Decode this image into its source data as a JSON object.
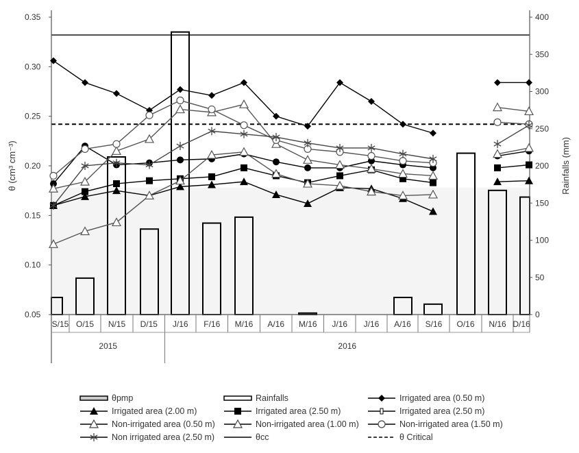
{
  "chart_data": {
    "type": "line",
    "categories": [
      "S/15",
      "O/15",
      "N/15",
      "D/15",
      "J/16",
      "F/16",
      "M/16",
      "A/16",
      "M/16",
      "J/16",
      "J/16",
      "A/16",
      "S/16",
      "O/16",
      "N/16",
      "D/16"
    ],
    "years": [
      {
        "label": "2015",
        "span": [
          "S/15",
          "D/15"
        ]
      },
      {
        "label": "2016",
        "span": [
          "J/16",
          "D/16"
        ]
      }
    ],
    "ylabel": "θ (cm³ cm⁻³)",
    "ylabel_parts": {
      "main": "θ (cm",
      "sup1": "3",
      "mid": " cm",
      "sup2": "-3",
      "end": ")"
    },
    "y2label": "Rainfalls (mm)",
    "ylim": [
      0.05,
      0.35
    ],
    "yticks": [
      "0.05",
      "0.10",
      "0.15",
      "0.20",
      "0.25",
      "0.30",
      "0.35"
    ],
    "y2lim": [
      0,
      400
    ],
    "y2ticks": [
      "0",
      "50",
      "100",
      "150",
      "200",
      "250",
      "300",
      "350",
      "400"
    ],
    "theta_cc": 0.332,
    "theta_critical": 0.242,
    "theta_pmp": 0.178,
    "rainfall": [
      23,
      49,
      212,
      115,
      380,
      123,
      131,
      0,
      2,
      0,
      0,
      23,
      14,
      217,
      167,
      158
    ],
    "series": [
      {
        "name": "Irrigated area (0.50 m)",
        "marker": "diamond",
        "color": "#000000",
        "values": [
          0.306,
          0.284,
          0.273,
          0.256,
          0.277,
          0.271,
          0.284,
          0.25,
          0.24,
          0.284,
          0.265,
          0.242,
          0.233,
          null,
          0.284,
          0.284
        ]
      },
      {
        "name": "Irrigated area (2.00 m)",
        "marker": "triangle-filled",
        "color": "#000000",
        "values": [
          0.16,
          0.169,
          0.175,
          0.17,
          0.179,
          0.181,
          0.184,
          0.171,
          0.162,
          0.178,
          0.177,
          0.167,
          0.154,
          null,
          0.184,
          0.185
        ]
      },
      {
        "name": "Irrigated area (2.50 m)",
        "marker": "square-filled",
        "color": "#000000",
        "values": [
          0.16,
          0.174,
          0.182,
          0.185,
          0.187,
          0.189,
          0.198,
          0.19,
          0.183,
          0.19,
          0.196,
          0.187,
          0.183,
          null,
          0.198,
          0.201
        ]
      },
      {
        "name": "Irrigated area (2.50 m)",
        "marker": "circle-filled",
        "color": "#000000",
        "values": [
          0.182,
          0.22,
          0.201,
          0.203,
          0.206,
          0.207,
          0.212,
          0.204,
          0.198,
          0.198,
          0.205,
          0.201,
          0.198,
          null,
          0.21,
          0.215
        ]
      },
      {
        "name": "Non-irrigated area (0.50 m)",
        "marker": "triangle-open",
        "color": "#555555",
        "values": [
          0.121,
          0.134,
          0.143,
          0.17,
          0.185,
          0.211,
          0.214,
          0.192,
          0.182,
          0.18,
          0.174,
          0.17,
          0.171,
          null,
          0.212,
          0.218
        ]
      },
      {
        "name": "Non-irrigated area (1.00 m)",
        "marker": "triangle-open",
        "color": "#555555",
        "values": [
          0.177,
          0.184,
          0.215,
          0.227,
          0.257,
          0.254,
          0.262,
          0.222,
          0.206,
          0.201,
          0.197,
          0.192,
          0.19,
          null,
          0.259,
          0.255
        ]
      },
      {
        "name": "Non-irrigated area (1.50 m)",
        "marker": "circle-open",
        "color": "#555555",
        "values": [
          0.19,
          0.217,
          0.222,
          0.251,
          0.266,
          0.257,
          0.241,
          0.226,
          0.217,
          0.214,
          0.21,
          0.205,
          0.203,
          null,
          0.244,
          0.242
        ]
      },
      {
        "name": "Non irrigated area (2.50 m)",
        "marker": "star",
        "color": "#444444",
        "values": [
          0.16,
          0.2,
          0.203,
          0.201,
          0.22,
          0.235,
          0.232,
          0.229,
          0.223,
          0.218,
          0.218,
          0.212,
          0.207,
          null,
          0.222,
          0.241
        ]
      }
    ],
    "legend": {
      "placement": "bottom",
      "items": [
        {
          "label": "θpmp",
          "symbol": "bar-gray"
        },
        {
          "label": "Rainfalls",
          "symbol": "bar-open"
        },
        {
          "label": "Irrigated area (0.50 m)",
          "symbol": "diamond"
        },
        {
          "label": "Irrigated area (2.00 m)",
          "symbol": "triangle-filled"
        },
        {
          "label": "Irrigated area (2.50 m)",
          "symbol": "square-filled"
        },
        {
          "label": "Irrigated area (2.50 m)",
          "symbol": "square-small"
        },
        {
          "label": "Non-irrigated area (0.50 m)",
          "symbol": "triangle-open"
        },
        {
          "label": "Non-irrigated area (1.00 m)",
          "symbol": "triangle-open"
        },
        {
          "label": "Non-irrigated area (1.50 m)",
          "symbol": "circle-open"
        },
        {
          "label": "Non irrigated area (2.50 m)",
          "symbol": "star"
        },
        {
          "label": "θcc",
          "symbol": "line"
        },
        {
          "label": "θ Critical",
          "symbol": "dashed"
        }
      ]
    }
  }
}
